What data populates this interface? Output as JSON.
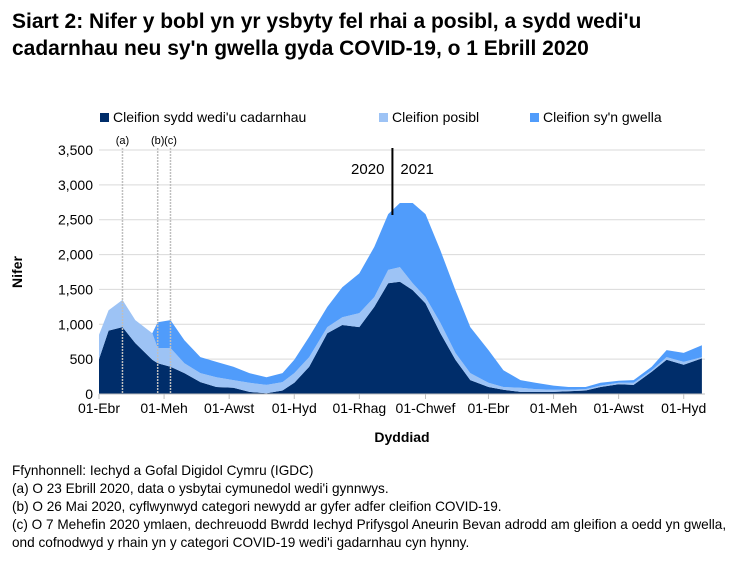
{
  "title": "Siart 2: Nifer y bobl yn yr ysbyty fel rhai a posibl, a sydd wedi'u cadarnhau neu sy'n gwella gyda COVID-19, o 1 Ebrill 2020",
  "chart_data": {
    "type": "area",
    "stacked": true,
    "xlabel": "Dyddiad",
    "ylabel": "Nifer",
    "ylim": [
      0,
      3500
    ],
    "yticks": [
      "0",
      "500",
      "1,000",
      "1,500",
      "2,000",
      "2,500",
      "3,000",
      "3,500"
    ],
    "ytick_values": [
      0,
      500,
      1000,
      1500,
      2000,
      2500,
      3000,
      3500
    ],
    "xticks": [
      {
        "date": "2020-04-01",
        "label": "01-Ebr"
      },
      {
        "date": "2020-06-01",
        "label": "01-Meh"
      },
      {
        "date": "2020-08-01",
        "label": "01-Awst"
      },
      {
        "date": "2020-10-01",
        "label": "01-Hyd"
      },
      {
        "date": "2020-12-01",
        "label": "01-Rhag"
      },
      {
        "date": "2021-02-01",
        "label": "01-Chwef"
      },
      {
        "date": "2021-04-01",
        "label": "01-Ebr"
      },
      {
        "date": "2021-06-01",
        "label": "01-Meh"
      },
      {
        "date": "2021-08-01",
        "label": "01-Awst"
      },
      {
        "date": "2021-10-01",
        "label": "01-Hyd"
      }
    ],
    "grid": true,
    "legend_position": "top",
    "x": [
      "2020-04-01",
      "2020-04-10",
      "2020-04-23",
      "2020-05-05",
      "2020-05-21",
      "2020-05-26",
      "2020-06-07",
      "2020-06-20",
      "2020-07-05",
      "2020-07-20",
      "2020-08-05",
      "2020-08-20",
      "2020-09-05",
      "2020-09-20",
      "2020-10-01",
      "2020-10-15",
      "2020-11-01",
      "2020-11-15",
      "2020-12-01",
      "2020-12-15",
      "2020-12-28",
      "2021-01-08",
      "2021-01-20",
      "2021-02-01",
      "2021-02-15",
      "2021-03-01",
      "2021-03-15",
      "2021-04-01",
      "2021-04-15",
      "2021-05-01",
      "2021-05-15",
      "2021-06-01",
      "2021-06-15",
      "2021-07-01",
      "2021-07-15",
      "2021-08-01",
      "2021-08-15",
      "2021-09-01",
      "2021-09-15",
      "2021-10-01",
      "2021-10-18"
    ],
    "series": [
      {
        "name": "Cleifion sydd wedi'u cadarnhau",
        "color": "#002D6A",
        "values": [
          500,
          910,
          960,
          730,
          490,
          440,
          390,
          300,
          170,
          100,
          90,
          30,
          10,
          50,
          160,
          390,
          870,
          990,
          960,
          1250,
          1590,
          1610,
          1490,
          1300,
          870,
          490,
          200,
          100,
          60,
          30,
          30,
          30,
          40,
          50,
          100,
          140,
          130,
          320,
          490,
          420,
          510
        ]
      },
      {
        "name": "Cleifion posibl",
        "color": "#9DC3F5",
        "values": [
          350,
          290,
          390,
          330,
          380,
          220,
          270,
          140,
          130,
          140,
          110,
          130,
          120,
          120,
          140,
          140,
          90,
          110,
          200,
          140,
          190,
          210,
          100,
          90,
          150,
          100,
          100,
          60,
          40,
          60,
          40,
          30,
          20,
          20,
          20,
          20,
          30,
          20,
          40,
          40,
          20
        ]
      },
      {
        "name": "Cleifion sy'n gwella",
        "color": "#509CFB",
        "values": [
          0,
          0,
          0,
          0,
          0,
          370,
          400,
          330,
          230,
          220,
          190,
          140,
          110,
          130,
          190,
          290,
          290,
          430,
          570,
          720,
          800,
          920,
          1150,
          1190,
          1040,
          900,
          660,
          470,
          240,
          110,
          90,
          60,
          40,
          30,
          40,
          30,
          40,
          50,
          100,
          130,
          170
        ]
      }
    ],
    "annotations": [
      {
        "label": "(a)",
        "date": "2020-04-23"
      },
      {
        "label": "(b)",
        "date": "2020-05-26"
      },
      {
        "label": "(c)",
        "date": "2020-06-07"
      }
    ],
    "year_divider": {
      "date": "2021-01-01",
      "left": "2020",
      "right": "2021"
    }
  },
  "notes": [
    "Ffynhonnell: Iechyd a Gofal Digidol Cymru (IGDC)",
    "(a) O 23 Ebrill 2020, data o ysbytai cymunedol wedi'i gynnwys.",
    "(b) O 26 Mai 2020, cyflwynwyd categori newydd ar gyfer adfer cleifion COVID-19.",
    "(c) O 7 Mehefin 2020 ymlaen, dechreuodd Bwrdd Iechyd Prifysgol Aneurin Bevan adrodd am gleifion a oedd yn gwella, ond cofnodwyd y rhain yn y categori COVID-19 wedi'i gadarnhau cyn hynny."
  ]
}
